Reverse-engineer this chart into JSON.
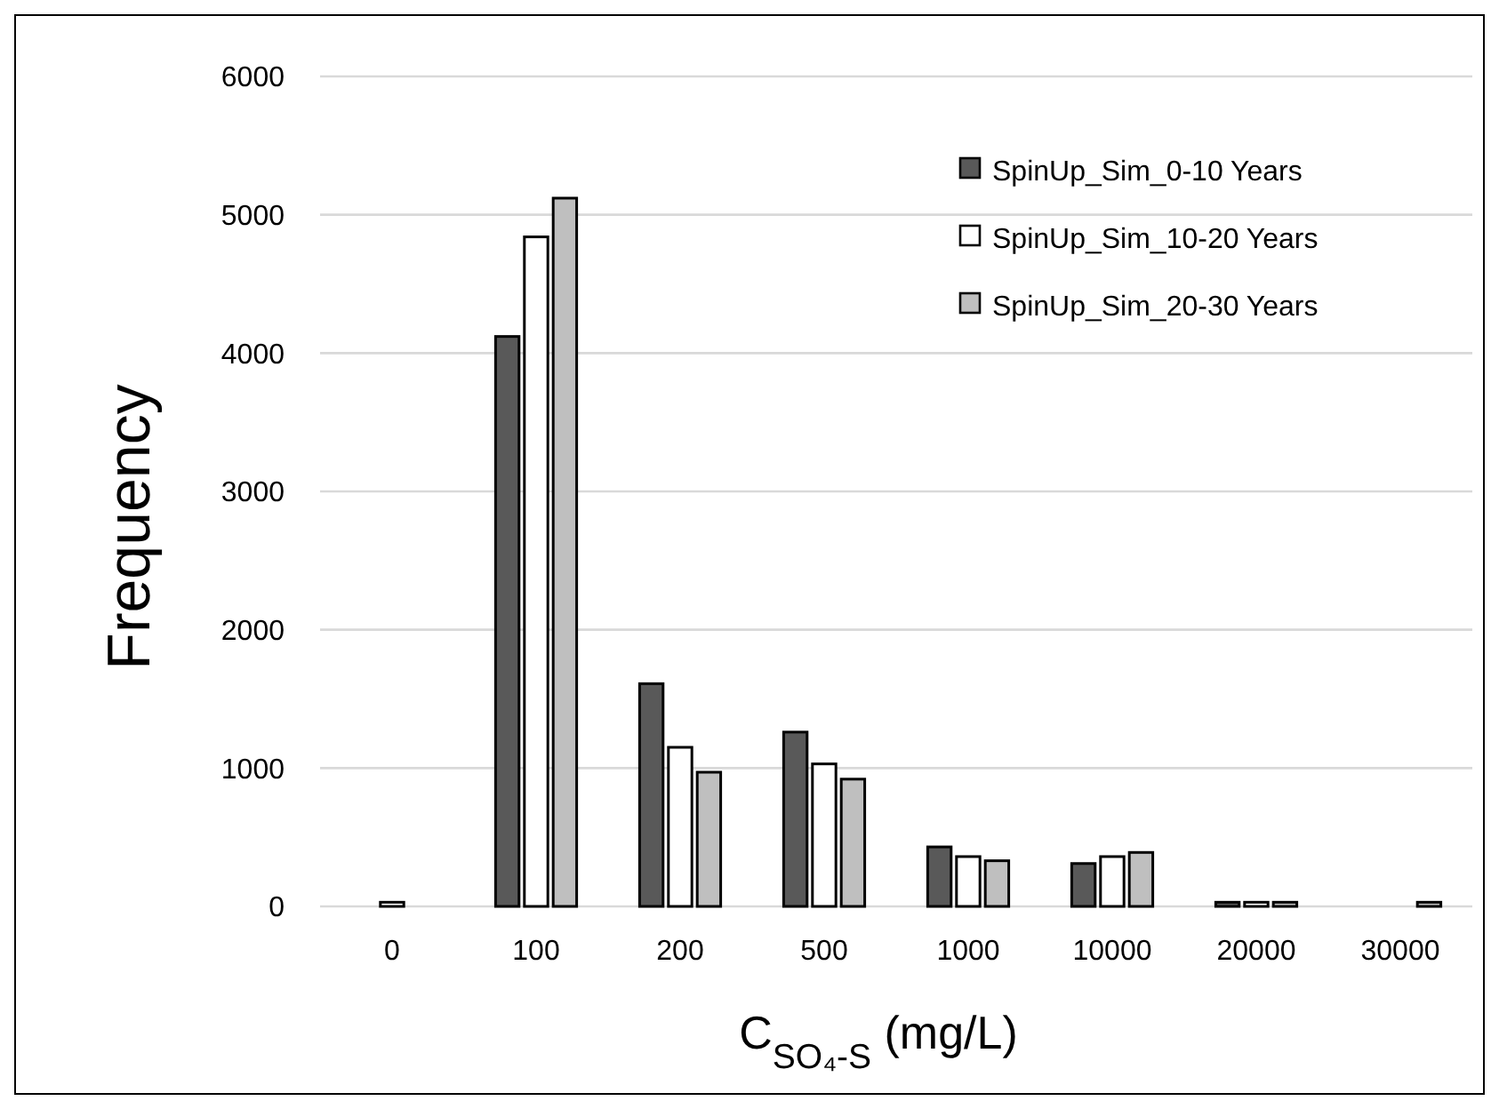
{
  "chart_data": {
    "type": "bar",
    "xlabel": "C$_{SO₄-S}$ (mg/L)",
    "ylabel": "Frequency",
    "categories": [
      "0",
      "100",
      "200",
      "500",
      "1000",
      "10000",
      "20000",
      "30000"
    ],
    "series": [
      {
        "name": "SpinUp_Sim_0-10 Years",
        "color": "#595959",
        "values": [
          0,
          4120,
          1610,
          1260,
          430,
          310,
          30,
          0
        ]
      },
      {
        "name": "SpinUp_Sim_10-20 Years",
        "color": "#ffffff",
        "values": [
          30,
          4840,
          1150,
          1030,
          360,
          360,
          30,
          0
        ]
      },
      {
        "name": "SpinUp_Sim_20-30 Years",
        "color": "#bfbfbf",
        "values": [
          0,
          5120,
          970,
          920,
          330,
          390,
          30,
          30
        ]
      }
    ],
    "ylim": [
      0,
      6000
    ],
    "yticks": [
      0,
      1000,
      2000,
      3000,
      4000,
      5000,
      6000
    ],
    "grid": "y",
    "legend": "top right"
  }
}
